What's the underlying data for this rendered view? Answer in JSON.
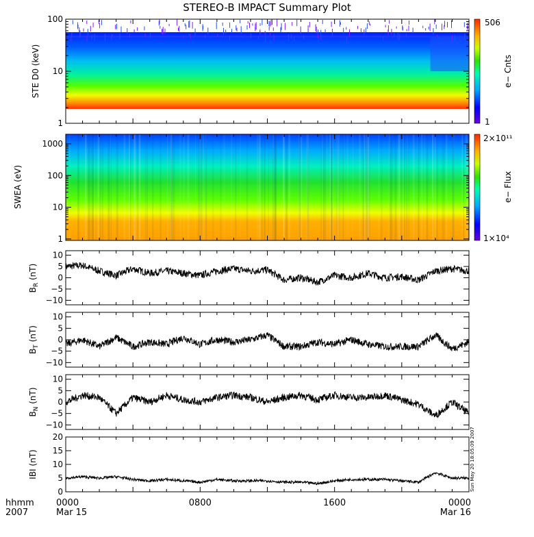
{
  "title": "STEREO-B IMPACT Summary Plot",
  "side_stamp": "Sun May 20 18:05:09 2007",
  "time_axis": {
    "row1_label": "hhmm",
    "row2_label": "2007",
    "ticks": [
      {
        "hours": 0,
        "top": "0000",
        "bottom": "Mar 15"
      },
      {
        "hours": 8,
        "top": "0800",
        "bottom": ""
      },
      {
        "hours": 16,
        "top": "1600",
        "bottom": ""
      },
      {
        "hours": 24,
        "top": "0000",
        "bottom": "Mar 16"
      }
    ],
    "range_hours": [
      0,
      24
    ]
  },
  "chart_data": [
    {
      "type": "heatmap",
      "id": "ste",
      "ylabel": "STE D0 (keV)",
      "yscale": "log",
      "ylim": [
        1,
        100
      ],
      "yticks": [
        {
          "v": 1,
          "label": "1"
        },
        {
          "v": 10,
          "label": "10"
        },
        {
          "v": 100,
          "label": "100"
        }
      ],
      "data_y_range": [
        2,
        45
      ],
      "colorbar": {
        "label": "e− Cnts",
        "max_label": "506",
        "min_label": "1",
        "max": 506,
        "min": 1
      }
    },
    {
      "type": "heatmap",
      "id": "swea",
      "ylabel": "SWEA (eV)",
      "yscale": "log",
      "ylim": [
        0.9,
        2000
      ],
      "yticks": [
        {
          "v": 1,
          "label": "1"
        },
        {
          "v": 10,
          "label": "10"
        },
        {
          "v": 100,
          "label": "100"
        },
        {
          "v": 1000,
          "label": "1000"
        }
      ],
      "data_y_range": [
        0.9,
        1700
      ],
      "colorbar": {
        "label": "e− Flux",
        "max_label": "2×10¹¹",
        "min_label": "1×10⁴",
        "max": 200000000000.0,
        "min": 10000.0
      }
    },
    {
      "type": "line",
      "id": "br",
      "ylabel_main": "B",
      "ylabel_sub": "R",
      "ylabel_unit": " (nT)",
      "ylim": [
        -12,
        12
      ],
      "yticks": [
        {
          "v": -10,
          "label": "−10"
        },
        {
          "v": -5,
          "label": "−5"
        },
        {
          "v": 0,
          "label": "0"
        },
        {
          "v": 5,
          "label": "5"
        },
        {
          "v": 10,
          "label": "10"
        }
      ],
      "x": [
        0,
        1,
        2,
        3,
        4,
        5,
        6,
        7,
        8,
        9,
        10,
        11,
        12,
        13,
        14,
        15,
        16,
        17,
        18,
        19,
        20,
        21,
        22,
        23,
        24
      ],
      "values": [
        5,
        5.5,
        3,
        1,
        4,
        2,
        3,
        2,
        1,
        3,
        4,
        3,
        3.5,
        -1,
        0,
        -2,
        1,
        0,
        2,
        0,
        0.5,
        -1,
        3,
        4,
        3
      ]
    },
    {
      "type": "line",
      "id": "bt",
      "ylabel_main": "B",
      "ylabel_sub": "T",
      "ylabel_unit": " (nT)",
      "ylim": [
        -12,
        12
      ],
      "yticks": [
        {
          "v": -10,
          "label": "−10"
        },
        {
          "v": -5,
          "label": "−5"
        },
        {
          "v": 0,
          "label": "0"
        },
        {
          "v": 5,
          "label": "5"
        },
        {
          "v": 10,
          "label": "10"
        }
      ],
      "x": [
        0,
        1,
        2,
        3,
        4,
        5,
        6,
        7,
        8,
        9,
        10,
        11,
        12,
        13,
        14,
        15,
        16,
        17,
        18,
        19,
        20,
        21,
        22,
        23,
        24
      ],
      "values": [
        -2,
        0,
        -3,
        1,
        -3,
        -1,
        -2,
        1,
        -2,
        0,
        -1,
        0,
        2,
        -3,
        -3,
        -1,
        -2,
        0,
        -2,
        -3,
        -3,
        -3,
        2,
        -4,
        -1
      ]
    },
    {
      "type": "line",
      "id": "bn",
      "ylabel_main": "B",
      "ylabel_sub": "N",
      "ylabel_unit": " (nT)",
      "ylim": [
        -12,
        12
      ],
      "yticks": [
        {
          "v": -10,
          "label": "−10"
        },
        {
          "v": -5,
          "label": "−5"
        },
        {
          "v": 0,
          "label": "0"
        },
        {
          "v": 5,
          "label": "5"
        },
        {
          "v": 10,
          "label": "10"
        }
      ],
      "x": [
        0,
        1,
        2,
        3,
        4,
        5,
        6,
        7,
        8,
        9,
        10,
        11,
        12,
        13,
        14,
        15,
        16,
        17,
        18,
        19,
        20,
        21,
        22,
        23,
        24
      ],
      "values": [
        0,
        3,
        2,
        -5,
        2,
        0,
        3,
        1,
        0,
        2,
        3,
        2,
        0,
        2,
        3,
        1,
        3,
        2,
        2,
        3,
        1,
        -1,
        -6,
        0,
        -5
      ]
    },
    {
      "type": "line",
      "id": "bmag",
      "ylabel_main": "IBI",
      "ylabel_sub": "",
      "ylabel_unit": " (nT)",
      "ylim": [
        0,
        20
      ],
      "yticks": [
        {
          "v": 0,
          "label": "0"
        },
        {
          "v": 5,
          "label": "5"
        },
        {
          "v": 10,
          "label": "10"
        },
        {
          "v": 15,
          "label": "15"
        },
        {
          "v": 20,
          "label": "20"
        }
      ],
      "x": [
        0,
        1,
        2,
        3,
        4,
        5,
        6,
        7,
        8,
        9,
        10,
        11,
        12,
        13,
        14,
        15,
        16,
        17,
        18,
        19,
        20,
        21,
        22,
        23,
        24
      ],
      "values": [
        5,
        5.5,
        5,
        5.5,
        4.5,
        4,
        4.5,
        4,
        3.5,
        4.5,
        4,
        4,
        4,
        3.5,
        3.5,
        3,
        4,
        4.5,
        4.5,
        4.5,
        4,
        3.5,
        7,
        5,
        5
      ]
    }
  ]
}
